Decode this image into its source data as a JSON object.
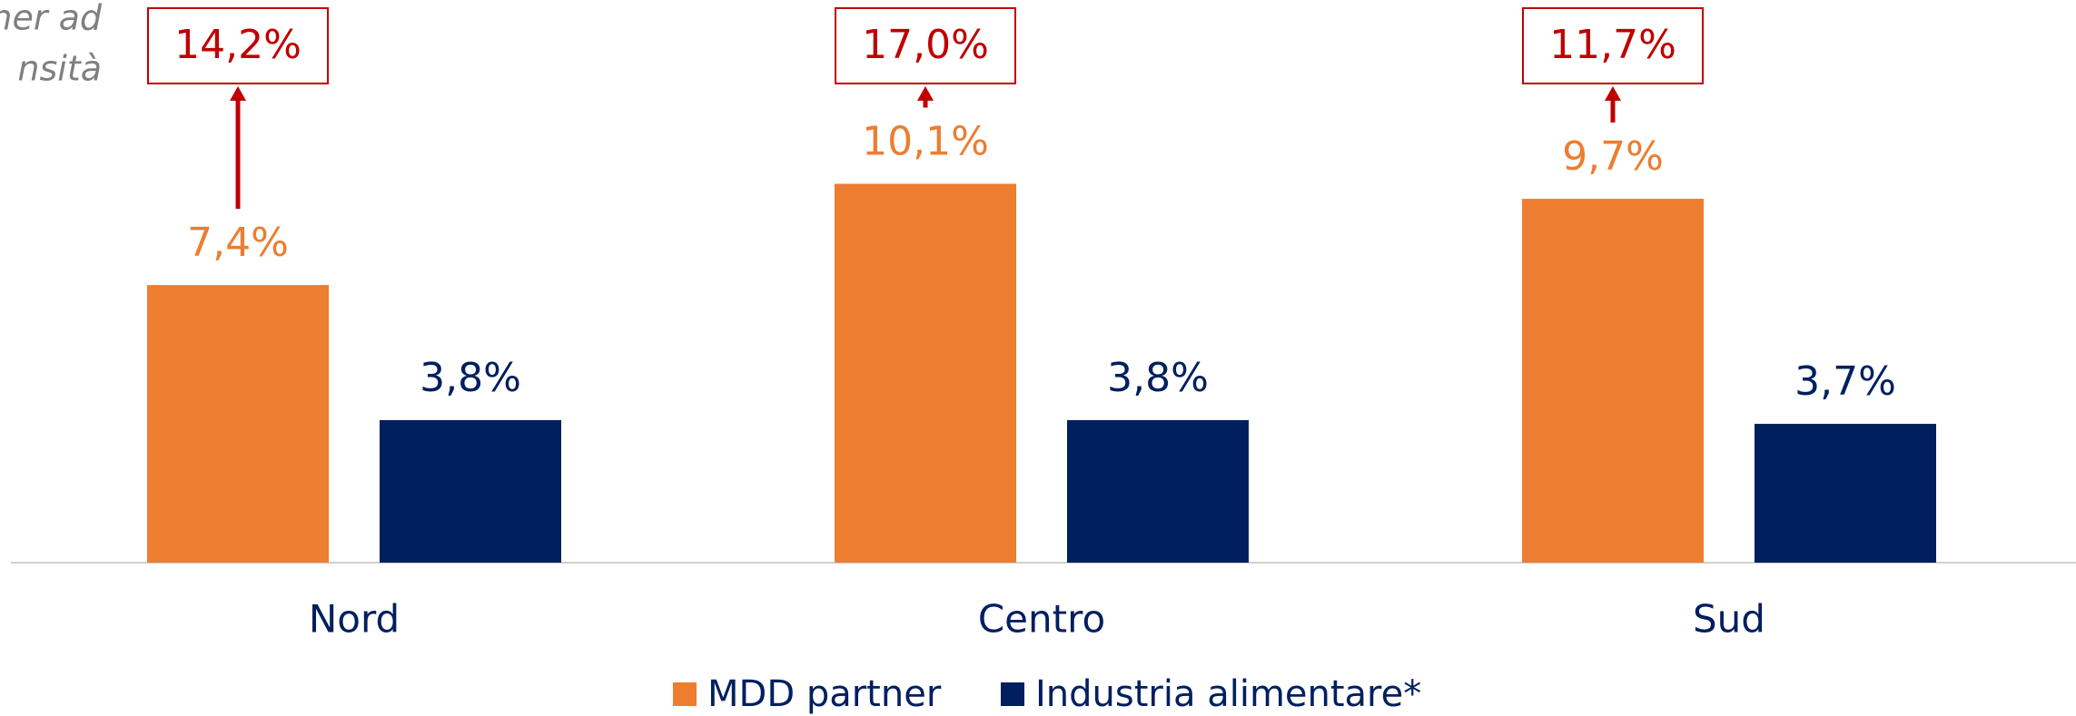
{
  "chart_data": {
    "type": "bar",
    "cropped_text": [
      "ner ad",
      "nsità"
    ],
    "categories": [
      "Nord",
      "Centro",
      "Sud"
    ],
    "series": [
      {
        "name": "MDD partner",
        "color": "#ED7D31",
        "values": [
          7.4,
          10.1,
          9.7
        ],
        "value_labels": [
          "7,4%",
          "10,1%",
          "9,7%"
        ]
      },
      {
        "name": "Industria alimentare*",
        "color": "#001F5F",
        "values": [
          3.8,
          3.8,
          3.7
        ],
        "value_labels": [
          "3,8%",
          "3,8%",
          "3,7%"
        ]
      }
    ],
    "annotations": [
      "14,2%",
      "17,0%",
      "11,7%"
    ],
    "annotation_color": "#C00000",
    "ylim": [
      0,
      15
    ]
  }
}
